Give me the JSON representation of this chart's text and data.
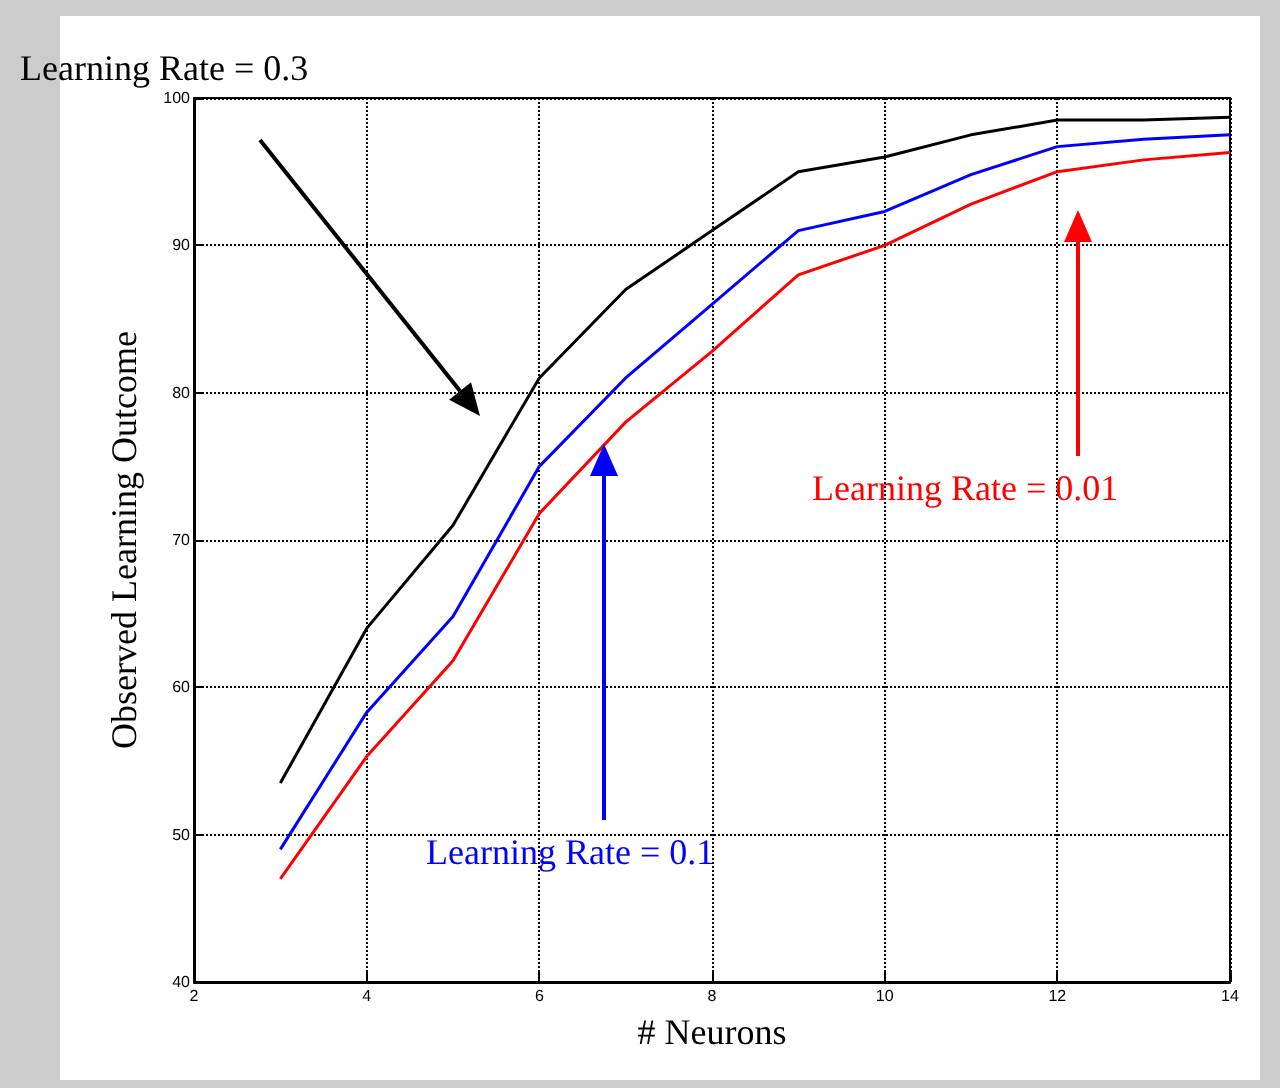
{
  "chart_data": {
    "type": "line",
    "xlabel": "# Neurons",
    "ylabel": "Observed Learning Outcome",
    "x": [
      3,
      4,
      5,
      6,
      7,
      8,
      9,
      10,
      11,
      12,
      13,
      14
    ],
    "series": [
      {
        "color": "#000000",
        "values": [
          53.5,
          64,
          71,
          81,
          87,
          91,
          95,
          96,
          97.5,
          98.5,
          98.5,
          98.7
        ]
      },
      {
        "color": "#0000ff",
        "values": [
          49,
          58.3,
          64.8,
          75,
          81,
          86,
          91,
          92.3,
          94.8,
          96.7,
          97.2,
          97.5
        ]
      },
      {
        "color": "#ff0000",
        "values": [
          47,
          55.3,
          61.8,
          71.8,
          78,
          82.8,
          88,
          90,
          92.8,
          95,
          95.8,
          96.3
        ]
      }
    ],
    "xlim": [
      2,
      14
    ],
    "xticks": [
      2,
      4,
      6,
      8,
      10,
      12,
      14
    ],
    "ylim": [
      40,
      100
    ],
    "yticks": [
      40,
      50,
      60,
      70,
      80,
      90,
      100
    ],
    "grid": true,
    "marker": "none",
    "line_style": "solid",
    "annotations": [
      "Learning Rate = 0.3",
      "Learning Rate = 0.1",
      "Learning Rate = 0.01"
    ]
  }
}
